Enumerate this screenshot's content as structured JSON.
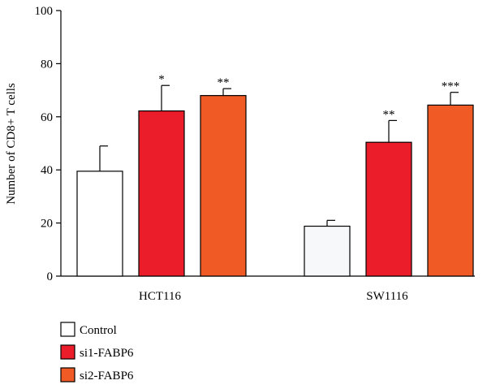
{
  "chart_data": {
    "type": "bar",
    "ylabel": "Number of CD8+ T cells",
    "ylim": [
      0,
      100
    ],
    "yticks": [
      0,
      20,
      40,
      60,
      80,
      100
    ],
    "categories": [
      "HCT116",
      "SW1116"
    ],
    "series": [
      {
        "name": "Control",
        "color": "#ffffff",
        "values": [
          39.5,
          18.8
        ],
        "errors": [
          9.5,
          2.2
        ],
        "significance": [
          "",
          ""
        ]
      },
      {
        "name": "si1-FABP6",
        "color": "#ec1d2a",
        "values": [
          62.2,
          50.4
        ],
        "errors": [
          9.6,
          8.2
        ],
        "significance": [
          "*",
          "**"
        ]
      },
      {
        "name": "si2-FABP6",
        "color": "#f05a24",
        "values": [
          68.0,
          64.4
        ],
        "errors": [
          2.6,
          4.8
        ],
        "significance": [
          "**",
          "***"
        ]
      }
    ],
    "legend_position": "bottom-left"
  }
}
